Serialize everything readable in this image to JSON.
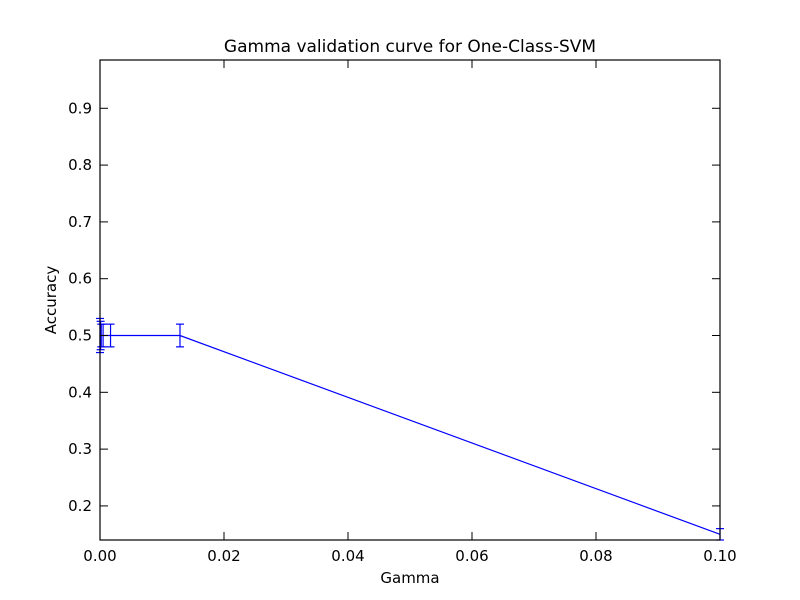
{
  "chart_data": {
    "type": "line",
    "title": "Gamma validation curve for One-Class-SVM",
    "xlabel": "Gamma",
    "ylabel": "Accuracy",
    "xlim": [
      0.0,
      0.1
    ],
    "ylim": [
      0.14,
      0.985
    ],
    "x_ticks": [
      0.0,
      0.02,
      0.04,
      0.06,
      0.08,
      0.1
    ],
    "x_tick_labels": [
      "0.00",
      "0.02",
      "0.04",
      "0.06",
      "0.08",
      "0.10"
    ],
    "y_ticks": [
      0.2,
      0.3,
      0.4,
      0.5,
      0.6,
      0.7,
      0.8,
      0.9
    ],
    "y_tick_labels": [
      "0.2",
      "0.3",
      "0.4",
      "0.5",
      "0.6",
      "0.7",
      "0.8",
      "0.9"
    ],
    "grid": false,
    "legend": "none",
    "series_color": "#0000ff",
    "series": [
      {
        "x": [
          0.0,
          0.0001,
          0.0002,
          0.0005,
          0.0017,
          0.0129,
          0.1
        ],
        "y": [
          0.5,
          0.5,
          0.5,
          0.5,
          0.5,
          0.5,
          0.15
        ],
        "err": [
          0.03,
          0.025,
          0.02,
          0.02,
          0.02,
          0.02,
          0.01
        ]
      }
    ]
  }
}
